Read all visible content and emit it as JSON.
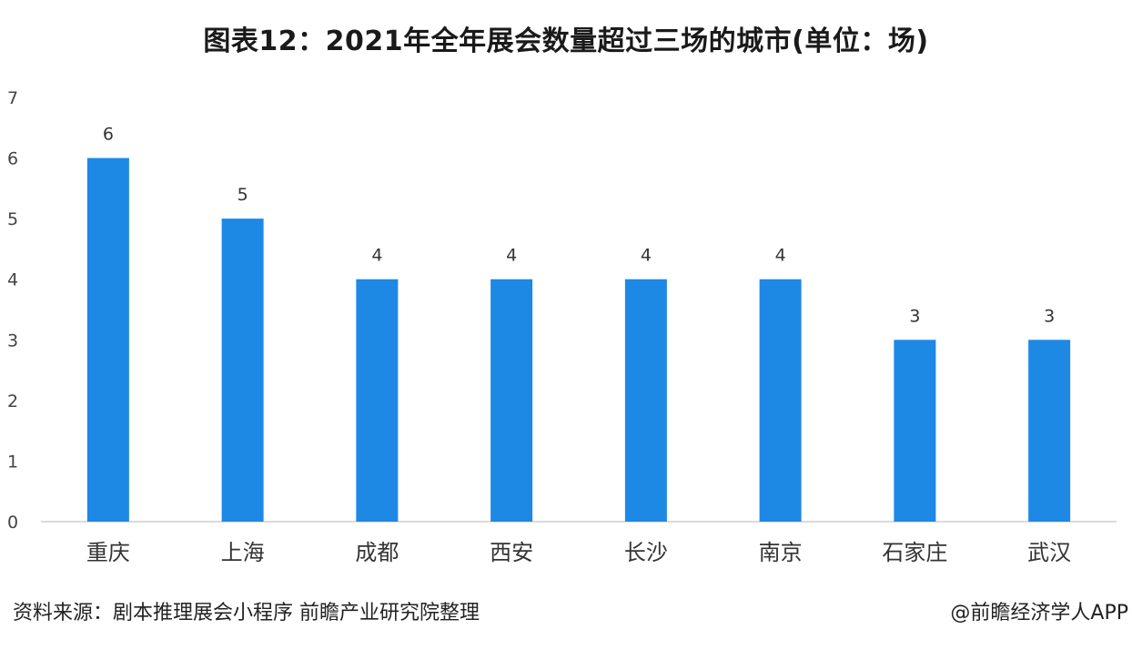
{
  "chart_data": {
    "type": "bar",
    "title": "图表12：2021年全年展会数量超过三场的城市(单位：场)",
    "xlabel": "",
    "ylabel": "",
    "categories": [
      "重庆",
      "上海",
      "成都",
      "西安",
      "长沙",
      "南京",
      "石家庄",
      "武汉"
    ],
    "values": [
      6,
      5,
      4,
      4,
      4,
      4,
      3,
      3
    ],
    "ylim": [
      0,
      7
    ],
    "yticks": [
      0,
      1,
      2,
      3,
      4,
      5,
      6,
      7
    ],
    "data_labels": true,
    "grid": false,
    "legend": "none",
    "bar_color": "#1E88E5"
  },
  "footer": {
    "source": "资料来源：剧本推理展会小程序 前瞻产业研究院整理",
    "credit": "@前瞻经济学人APP"
  }
}
